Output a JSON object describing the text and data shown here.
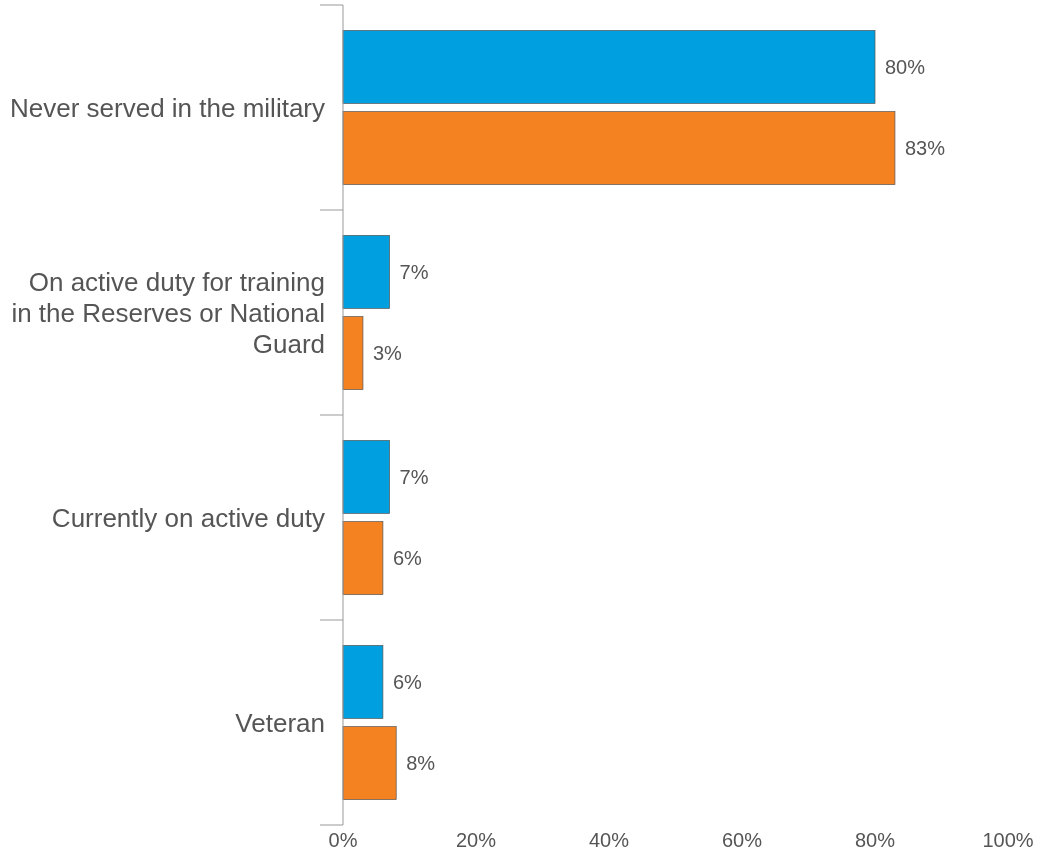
{
  "chart_data": {
    "type": "bar",
    "orientation": "horizontal",
    "categories": [
      "Never served in the military",
      "On active duty for training in the Reserves or National Guard",
      "Currently on active duty",
      "Veteran"
    ],
    "series": [
      {
        "color": "#00a0e0",
        "values": [
          80,
          7,
          7,
          6
        ],
        "value_labels": [
          "80%",
          "7%",
          "7%",
          "6%"
        ]
      },
      {
        "color": "#f58220",
        "values": [
          83,
          3,
          6,
          8
        ],
        "value_labels": [
          "83%",
          "3%",
          "6%",
          "8%"
        ]
      }
    ],
    "xlim": [
      0,
      100
    ],
    "xticks": [
      {
        "value": 0,
        "label": "0%"
      },
      {
        "value": 20,
        "label": "20%"
      },
      {
        "value": 40,
        "label": "40%"
      },
      {
        "value": 60,
        "label": "60%"
      },
      {
        "value": 80,
        "label": "80%"
      },
      {
        "value": 100,
        "label": "100%"
      }
    ],
    "grid": false
  }
}
